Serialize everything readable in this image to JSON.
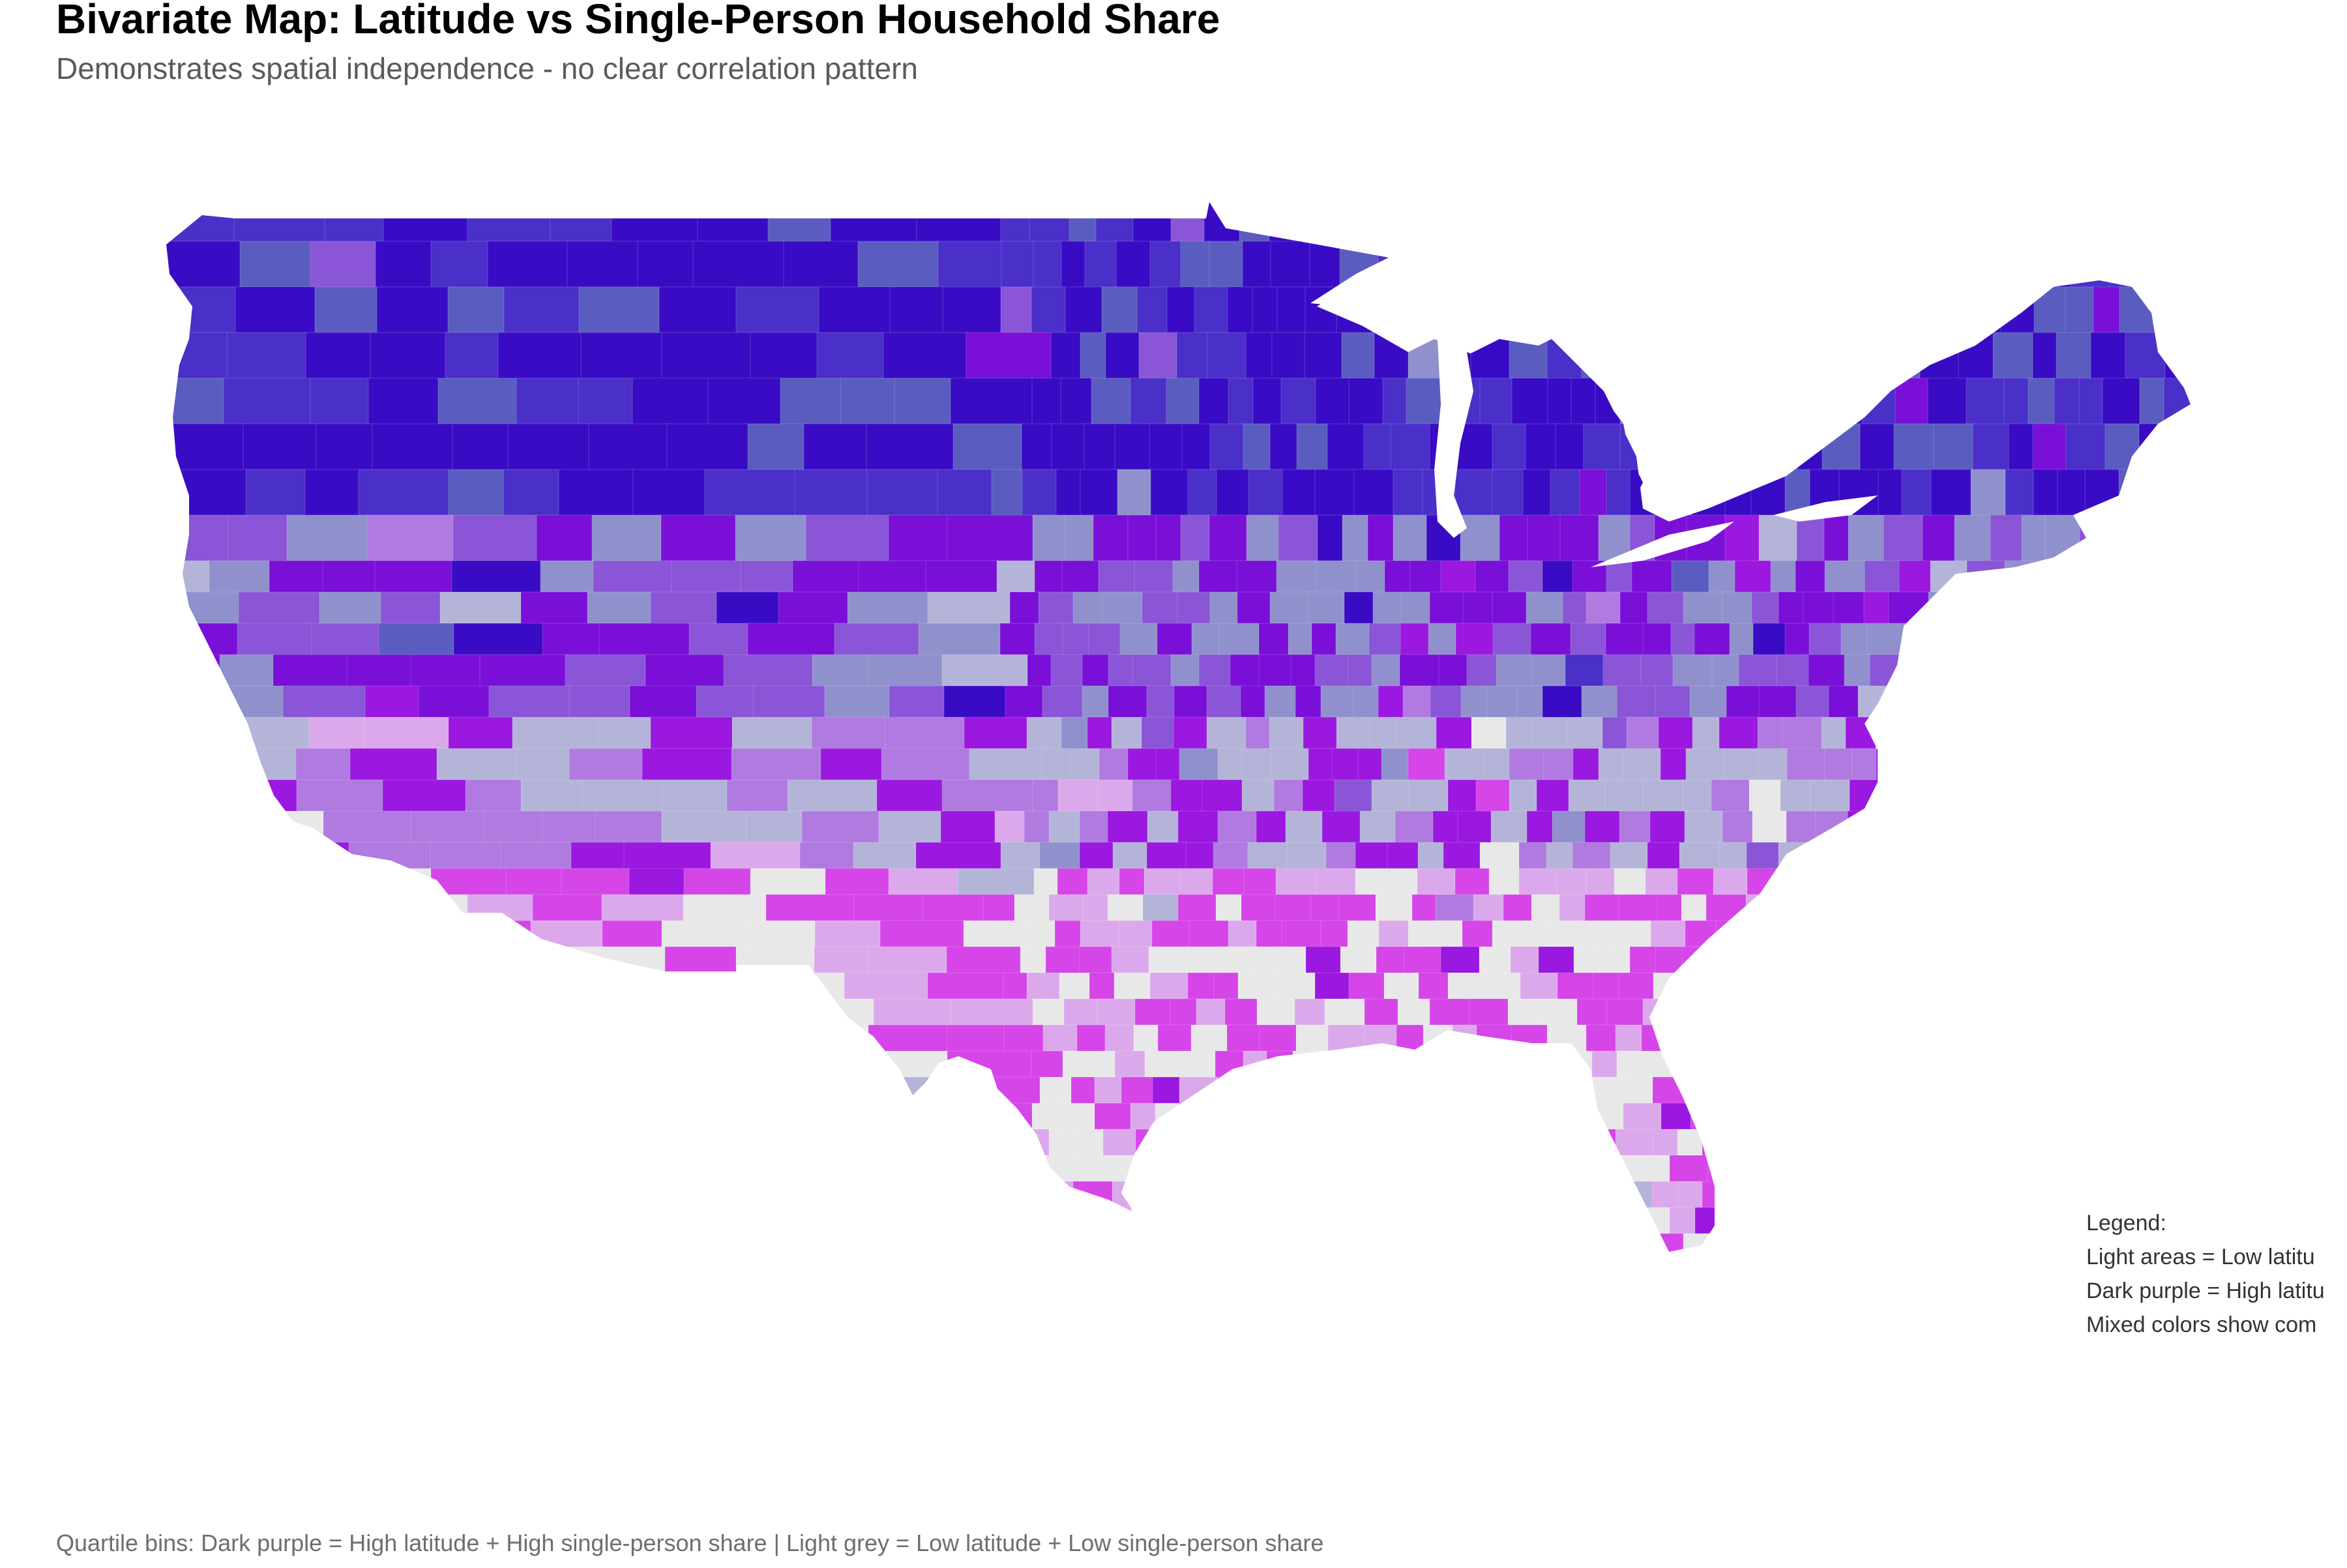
{
  "title": "Bivariate Map: Latitude vs Single-Person Household Share",
  "subtitle": "Demonstrates spatial independence - no clear correlation pattern",
  "legend": {
    "heading": "Legend:",
    "items": [
      "Light areas = Low latitu",
      "Dark purple = High latitu",
      "Mixed colors show com"
    ]
  },
  "caption": "Quartile bins: Dark purple = High latitude + High single-person share | Light grey = Low latitude + Low single-person share",
  "palette": {
    "high_lat_high_share": "#3a0bc4",
    "high_lat_mid_share": "#4a2fc9",
    "high_lat_low_share": "#5a5cc0",
    "upper_mid_lat_high_share": "#7a0fd8",
    "upper_mid_lat_mid_share": "#8a55d6",
    "upper_mid_lat_low_share": "#8f90cc",
    "lower_mid_lat_high_share": "#9b18e0",
    "lower_mid_lat_mid_share": "#b07ae0",
    "lower_mid_lat_low_share": "#b4b4d8",
    "low_lat_high_share": "#d545e8",
    "low_lat_mid_share": "#dca8ec",
    "low_lat_low_share": "#e8e8e8"
  }
}
